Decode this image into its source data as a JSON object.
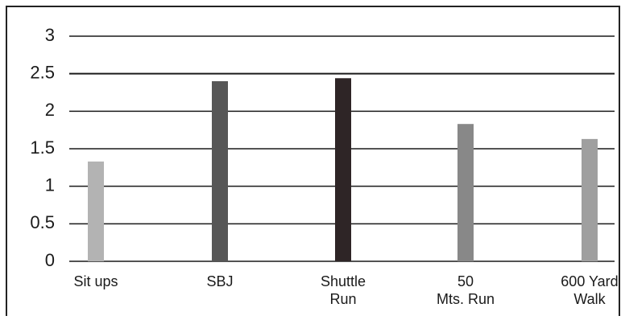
{
  "chart_data": {
    "type": "bar",
    "categories": [
      [
        "Sit ups"
      ],
      [
        "SBJ"
      ],
      [
        "Shuttle",
        "Run"
      ],
      [
        "50",
        "Mts. Run"
      ],
      [
        "600 Yard",
        "Walk"
      ]
    ],
    "values": [
      1.33,
      2.4,
      2.44,
      1.83,
      1.63
    ],
    "bar_colors": [
      "#b3b3b3",
      "#575757",
      "#2e2526",
      "#888888",
      "#9f9f9f"
    ],
    "ylim": [
      0,
      3
    ],
    "yticks": [
      "0",
      "0.5",
      "1",
      "1.5",
      "2",
      "2.5",
      "3"
    ],
    "grid": true,
    "title": "",
    "xlabel": "",
    "ylabel": ""
  }
}
